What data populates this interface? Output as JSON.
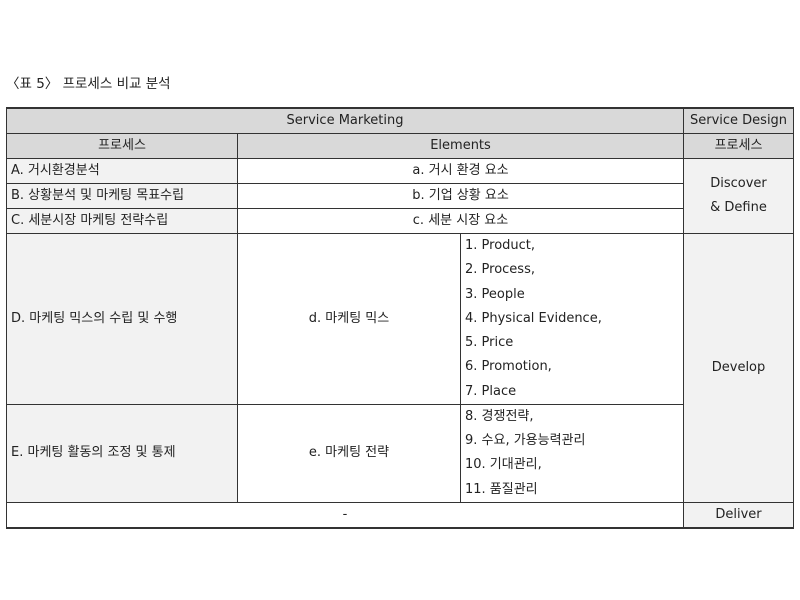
{
  "caption": "〈표 5〉 프로세스 비교 분석",
  "header": {
    "service_marketing": "Service Marketing",
    "service_design": "Service Design"
  },
  "subheader": {
    "process": "프로세스",
    "elements": "Elements",
    "sd_process": "프로세스"
  },
  "rows": [
    {
      "process": "A. 거시환경분석",
      "element": "a. 거시 환경 요소"
    },
    {
      "process": "B. 상황분석 및 마케팅 목표수립",
      "element": "b. 기업 상황 요소"
    },
    {
      "process": "C. 세분시장 마케팅 전략수립",
      "element": "c. 세분 시장 요소"
    },
    {
      "process": "D. 마케팅 믹스의 수립 및 수행",
      "element": "d. 마케팅 믹스",
      "items": [
        "1. Product,",
        "2. Process,",
        "3. People",
        "4. Physical Evidence,",
        "5. Price",
        "6. Promotion,",
        "7. Place"
      ]
    },
    {
      "process": "E. 마케팅 활동의 조정 및 통제",
      "element": "e. 마케팅 전략",
      "items": [
        "8. 경쟁전략,",
        "9. 수요, 가용능력관리",
        "10. 기대관리,",
        "11. 품질관리"
      ]
    }
  ],
  "design_phases": {
    "discover": "Discover",
    "define": "& Define",
    "develop": "Develop",
    "deliver": "Deliver"
  },
  "last_row": {
    "dash": "-"
  }
}
